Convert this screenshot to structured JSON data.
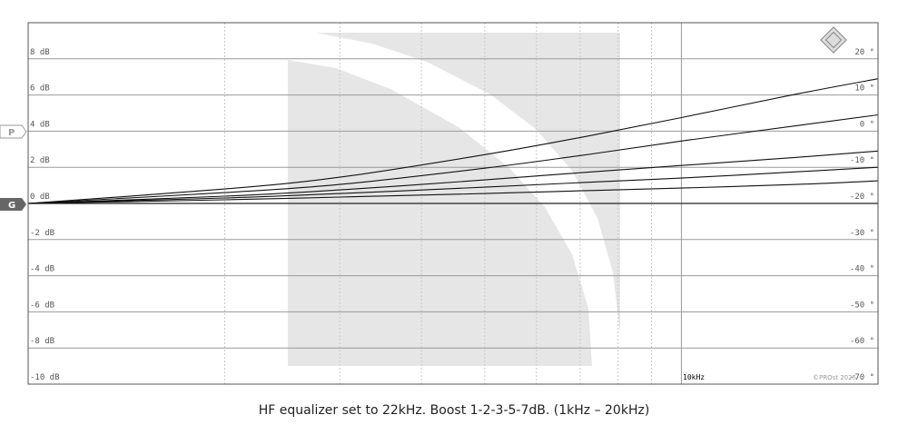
{
  "caption": "HF equalizer set to 22kHz. Boost 1-2-3-5-7dB. (1kHz – 20kHz)",
  "markers": {
    "p": "P",
    "g": "G"
  },
  "copyright": "©PROst 2025",
  "freq_label": "10kHz",
  "colors": {
    "grid_major": "#9a9a9a",
    "grid_minor": "#c8c8c8",
    "curve": "#111111",
    "watermark": "#e6e6e6",
    "frame": "#555555"
  },
  "chart_data": {
    "type": "line",
    "title": "",
    "xlabel": "",
    "ylabel": "",
    "x_scale": "log",
    "xlim": [
      1000,
      20000
    ],
    "ylim": [
      -10,
      10
    ],
    "y_ticks": [
      "8 dB",
      "6 dB",
      "4 dB",
      "2 dB",
      "0 dB",
      "-2 dB",
      "-4 dB",
      "-6 dB",
      "-8 dB",
      "-10 dB"
    ],
    "y_tick_values": [
      8,
      6,
      4,
      2,
      0,
      -2,
      -4,
      -6,
      -8,
      -10
    ],
    "y2_ticks": [
      "20 °",
      "10 °",
      "0 °",
      "-10 °",
      "-20 °",
      "-30 °",
      "-40 °",
      "-50 °",
      "-60 °",
      "-70 °"
    ],
    "x_ticks": [
      "10kHz"
    ],
    "grid": true,
    "series": [
      {
        "x": [
          1000,
          2000,
          3000,
          5000,
          7000,
          10000,
          15000,
          20000
        ],
        "values": [
          0.0,
          0.2,
          0.35,
          0.55,
          0.7,
          0.85,
          1.05,
          1.25
        ]
      },
      {
        "x": [
          1000,
          2000,
          3000,
          5000,
          7000,
          10000,
          15000,
          20000
        ],
        "values": [
          0.0,
          0.3,
          0.55,
          0.9,
          1.15,
          1.4,
          1.75,
          2.0
        ]
      },
      {
        "x": [
          1000,
          2000,
          3000,
          5000,
          7000,
          10000,
          15000,
          20000
        ],
        "values": [
          0.0,
          0.4,
          0.75,
          1.3,
          1.7,
          2.1,
          2.55,
          2.9
        ]
      },
      {
        "x": [
          1000,
          2000,
          3000,
          5000,
          7000,
          10000,
          15000,
          20000
        ],
        "values": [
          0.0,
          0.6,
          1.05,
          1.95,
          2.65,
          3.45,
          4.3,
          4.9
        ]
      },
      {
        "x": [
          1000,
          2000,
          3000,
          5000,
          7000,
          10000,
          15000,
          20000
        ],
        "values": [
          0.0,
          0.8,
          1.45,
          2.7,
          3.65,
          4.75,
          6.05,
          6.9
        ]
      }
    ]
  }
}
